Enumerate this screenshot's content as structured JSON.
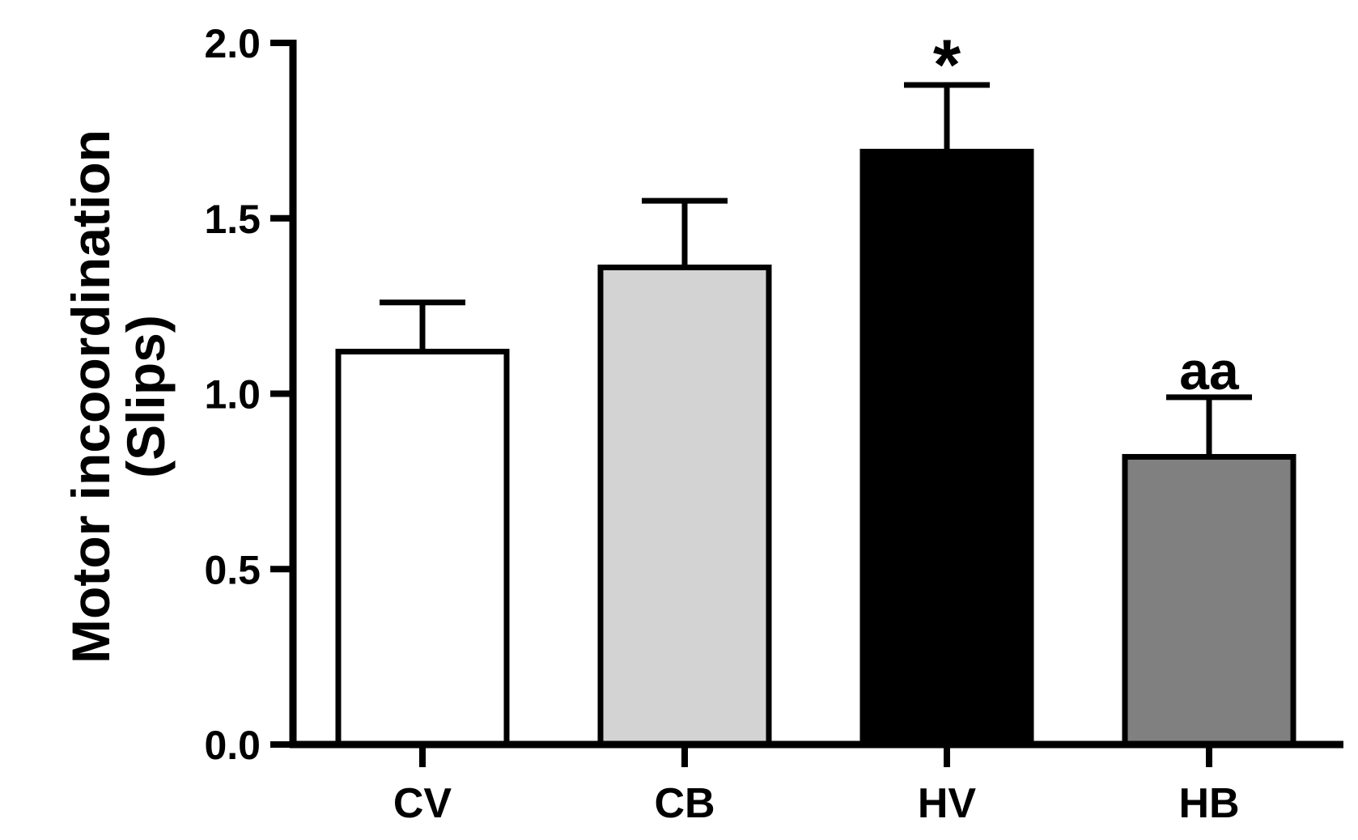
{
  "chart_data": {
    "type": "bar",
    "ylabel_line1": "Motor incoordination",
    "ylabel_line2": "(Slips)",
    "ylim": [
      0,
      2.0
    ],
    "yticks": [
      "0.0",
      "0.5",
      "1.0",
      "1.5",
      "2.0"
    ],
    "categories": [
      "CV",
      "CB",
      "HV",
      "HB"
    ],
    "values": [
      1.12,
      1.36,
      1.69,
      0.82
    ],
    "errors": [
      0.14,
      0.19,
      0.19,
      0.17
    ],
    "colors": [
      "#ffffff",
      "#d3d3d3",
      "#000000",
      "#808080"
    ],
    "annotations": [
      "",
      "",
      "*",
      "aa"
    ],
    "grid": false
  }
}
